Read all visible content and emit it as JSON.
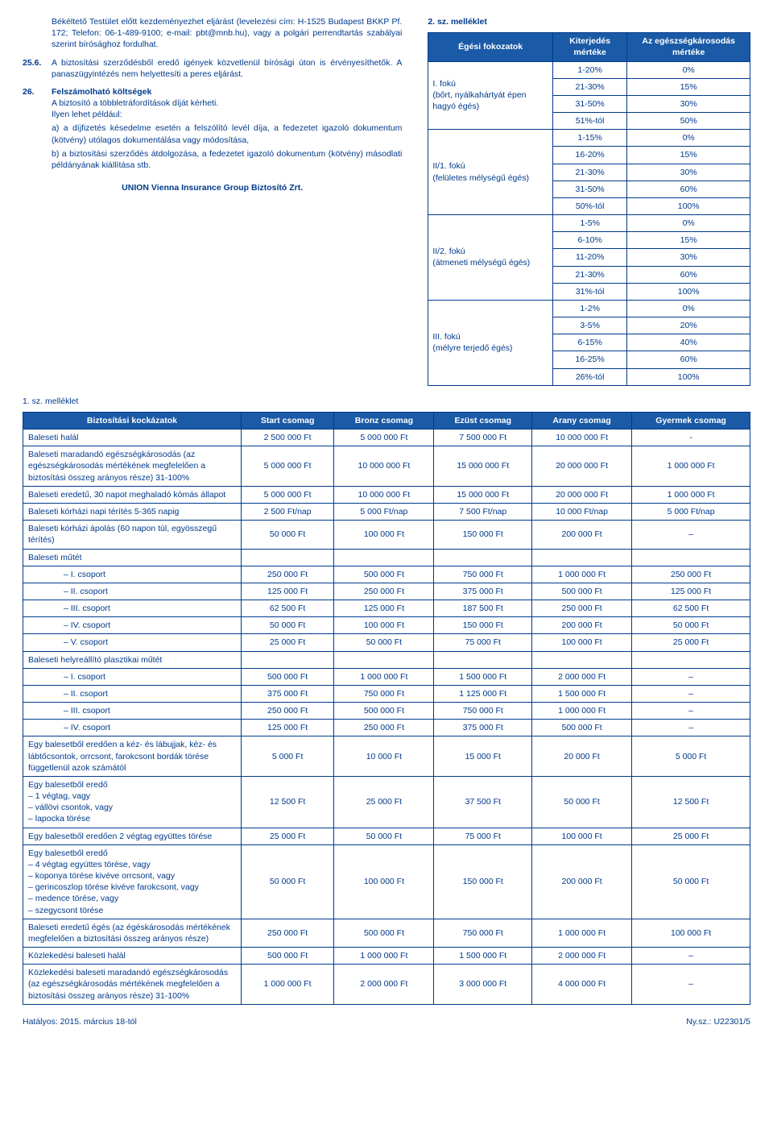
{
  "left": {
    "p1_num": "",
    "p1": "Békéltető Testület előtt kezdeményezhet eljárást (levelezési cím: H-1525 Budapest BKKP Pf. 172; Telefon: 06-1-489-9100; e-mail: pbt@mnb.hu), vagy a polgári perrendtartás szabályai szerint bírósághoz fordulhat.",
    "p2_num": "25.6.",
    "p2": "A biztosítási szerződésből eredő igények közvetlenül bírósági úton is érvényesíthetők. A panaszügyintézés nem helyettesíti a peres eljárást.",
    "p3_num": "26.",
    "p3_title": "Felszámolható költségek",
    "p3_line1": "A biztosító a többletráfordítások díját kérheti.",
    "p3_line2": "Ilyen lehet például:",
    "p3_a": "a) a díjfizetés késedelme esetén a felszólító levél díja, a fedezetet igazoló dokumentum (kötvény) utólagos dokumentálása vagy módosítása,",
    "p3_b": "b) a biztosítási szerződés átdolgozása, a fedezetet igazoló dokumentum (kötvény) másodlati példányának kiállítása stb.",
    "company": "UNION Vienna Insurance Group Biztosító Zrt."
  },
  "right": {
    "title": "2. sz. melléklet",
    "headers": [
      "Égési fokozatok",
      "Kiterjedés mértéke",
      "Az egészségkárosodás mértéke"
    ],
    "groups": [
      {
        "name": "I. fokú\n(bőrt, nyálkahártyát épen hagyó égés)",
        "rows": [
          [
            "1-20%",
            "0%"
          ],
          [
            "21-30%",
            "15%"
          ],
          [
            "31-50%",
            "30%"
          ],
          [
            "51%-tól",
            "50%"
          ]
        ]
      },
      {
        "name": "II/1. fokú\n(felületes mélységű égés)",
        "rows": [
          [
            "1-15%",
            "0%"
          ],
          [
            "16-20%",
            "15%"
          ],
          [
            "21-30%",
            "30%"
          ],
          [
            "31-50%",
            "60%"
          ],
          [
            "50%-tól",
            "100%"
          ]
        ]
      },
      {
        "name": "II/2. fokú\n(átmeneti mélységű égés)",
        "rows": [
          [
            "1-5%",
            "0%"
          ],
          [
            "6-10%",
            "15%"
          ],
          [
            "11-20%",
            "30%"
          ],
          [
            "21-30%",
            "60%"
          ],
          [
            "31%-tól",
            "100%"
          ]
        ]
      },
      {
        "name": "III. fokú\n(mélyre terjedő égés)",
        "rows": [
          [
            "1-2%",
            "0%"
          ],
          [
            "3-5%",
            "20%"
          ],
          [
            "6-15%",
            "40%"
          ],
          [
            "16-25%",
            "60%"
          ],
          [
            "26%-tól",
            "100%"
          ]
        ]
      }
    ]
  },
  "attach1": "1. sz. melléklet",
  "main_headers": [
    "Biztosítási kockázatok",
    "Start csomag",
    "Bronz csomag",
    "Ezüst csomag",
    "Arany csomag",
    "Gyermek csomag"
  ],
  "rows": [
    {
      "n": "Baleseti halál",
      "v": [
        "2 500 000 Ft",
        "5 000 000 Ft",
        "7 500 000 Ft",
        "10 000 000 Ft",
        "-"
      ]
    },
    {
      "n": "Baleseti maradandó egészségkárosodás (az egészségkárosodás mértékének megfelelően a biztosítási összeg arányos része) 31-100%",
      "v": [
        "5 000 000 Ft",
        "10 000 000 Ft",
        "15 000 000 Ft",
        "20 000 000 Ft",
        "1 000 000 Ft"
      ]
    },
    {
      "n": "Baleseti eredetű, 30 napot meghaladó kómás állapot",
      "v": [
        "5 000 000 Ft",
        "10 000 000 Ft",
        "15 000 000 Ft",
        "20 000 000 Ft",
        "1 000 000 Ft"
      ]
    },
    {
      "n": "Baleseti kórházi napi térítés 5-365 napig",
      "v": [
        "2 500 Ft/nap",
        "5 000 Ft/nap",
        "7 500 Ft/nap",
        "10 000 Ft/nap",
        "5 000 Ft/nap"
      ]
    },
    {
      "n": "Baleseti kórházi ápolás (60 napon túl, egyösszegű térítés)",
      "v": [
        "50 000 Ft",
        "100 000 Ft",
        "150 000 Ft",
        "200 000 Ft",
        "–"
      ]
    },
    {
      "n": "Baleseti műtét",
      "v": [
        "",
        "",
        "",
        "",
        ""
      ]
    },
    {
      "i": true,
      "n": "– I. csoport",
      "v": [
        "250 000 Ft",
        "500 000 Ft",
        "750 000 Ft",
        "1 000 000 Ft",
        "250 000 Ft"
      ]
    },
    {
      "i": true,
      "n": "– II. csoport",
      "v": [
        "125 000 Ft",
        "250 000 Ft",
        "375 000 Ft",
        "500 000 Ft",
        "125 000 Ft"
      ]
    },
    {
      "i": true,
      "n": "– III. csoport",
      "v": [
        "62 500 Ft",
        "125 000 Ft",
        "187 500 Ft",
        "250 000 Ft",
        "62 500 Ft"
      ]
    },
    {
      "i": true,
      "n": "– IV. csoport",
      "v": [
        "50 000 Ft",
        "100 000 Ft",
        "150 000 Ft",
        "200 000 Ft",
        "50 000 Ft"
      ]
    },
    {
      "i": true,
      "n": "– V. csoport",
      "v": [
        "25 000 Ft",
        "50 000 Ft",
        "75 000 Ft",
        "100 000 Ft",
        "25 000 Ft"
      ]
    },
    {
      "n": "Baleseti helyreállító plasztikai műtét",
      "v": [
        "",
        "",
        "",
        "",
        ""
      ]
    },
    {
      "i": true,
      "n": "– I. csoport",
      "v": [
        "500 000 Ft",
        "1 000 000 Ft",
        "1 500 000 Ft",
        "2 000 000 Ft",
        "–"
      ]
    },
    {
      "i": true,
      "n": "– II. csoport",
      "v": [
        "375 000 Ft",
        "750 000 Ft",
        "1 125 000 Ft",
        "1 500 000 Ft",
        "–"
      ]
    },
    {
      "i": true,
      "n": "– III. csoport",
      "v": [
        "250 000 Ft",
        "500 000 Ft",
        "750 000 Ft",
        "1 000 000 Ft",
        "–"
      ]
    },
    {
      "i": true,
      "n": "– IV. csoport",
      "v": [
        "125 000 Ft",
        "250 000 Ft",
        "375 000 Ft",
        "500 000 Ft",
        "–"
      ]
    },
    {
      "n": "Egy balesetből eredően a kéz- és lábujjak, kéz- és lábtőcsontok, orrcsont, farokcsont bordák törése függetlenül azok számától",
      "v": [
        "5 000 Ft",
        "10 000 Ft",
        "15 000 Ft",
        "20 000 Ft",
        "5 000 Ft"
      ]
    },
    {
      "n": "Egy balesetből eredő\n– 1 végtag, vagy\n– vállövi csontok, vagy\n– lapocka törése",
      "v": [
        "12 500 Ft",
        "25 000 Ft",
        "37 500 Ft",
        "50 000 Ft",
        "12 500 Ft"
      ]
    },
    {
      "n": "Egy balesetből eredően 2 végtag együttes törése",
      "v": [
        "25 000 Ft",
        "50 000 Ft",
        "75 000 Ft",
        "100 000 Ft",
        "25 000 Ft"
      ]
    },
    {
      "n": "Egy balesetből eredő\n– 4 végtag együttes törése, vagy\n– koponya törése kivéve orrcsont, vagy\n– gerincoszlop törése kivéve farokcsont, vagy\n– medence törése, vagy\n– szegycsont törése",
      "v": [
        "50 000 Ft",
        "100 000 Ft",
        "150 000 Ft",
        "200 000 Ft",
        "50 000 Ft"
      ]
    },
    {
      "n": "Baleseti eredetű égés (az égéskárosodás mértékének megfelelően a biztosítási összeg arányos része)",
      "v": [
        "250 000 Ft",
        "500 000 Ft",
        "750 000 Ft",
        "1 000 000 Ft",
        "100 000 Ft"
      ]
    },
    {
      "n": "Közlekedési baleseti halál",
      "v": [
        "500 000 Ft",
        "1 000 000 Ft",
        "1 500 000 Ft",
        "2 000 000 Ft",
        "–"
      ]
    },
    {
      "n": "Közlekedési baleseti maradandó egészségkárosodás (az egészségkárosodás mértékének megfelelően a biztosítási összeg arányos része) 31-100%",
      "v": [
        "1 000 000 Ft",
        "2 000 000 Ft",
        "3 000 000 Ft",
        "4 000 000 Ft",
        "–"
      ]
    }
  ],
  "footer_left": "Hatályos: 2015. március 18-tól",
  "footer_right": "Ny.sz.: U22301/5"
}
